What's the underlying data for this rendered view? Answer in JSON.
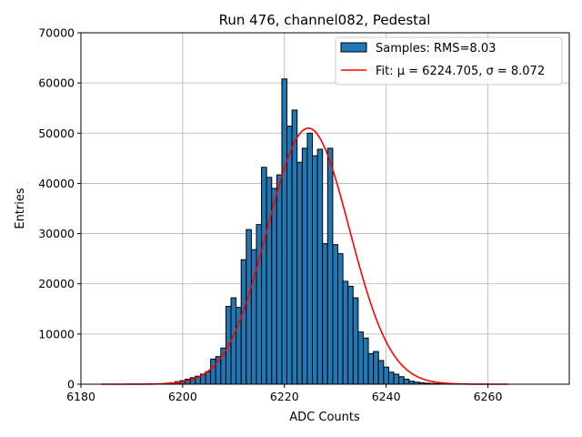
{
  "chart_data": {
    "type": "bar",
    "title": "Run 476, channel082, Pedestal",
    "xlabel": "ADC Counts",
    "ylabel": "Entries",
    "xlim": [
      6180,
      6276
    ],
    "ylim": [
      0,
      70000
    ],
    "xticks": [
      6180,
      6200,
      6220,
      6240,
      6260
    ],
    "yticks": [
      0,
      10000,
      20000,
      30000,
      40000,
      50000,
      60000,
      70000
    ],
    "grid": true,
    "legend_position": "top-right",
    "bar_color": "#1f77b4",
    "fit_color": "#ff0000",
    "bin_width": 1,
    "histogram": {
      "name": "Samples: RMS=8.03",
      "bins": [
        6196,
        6197,
        6198,
        6199,
        6200,
        6201,
        6202,
        6203,
        6204,
        6205,
        6206,
        6207,
        6208,
        6209,
        6210,
        6211,
        6212,
        6213,
        6214,
        6215,
        6216,
        6217,
        6218,
        6219,
        6220,
        6221,
        6222,
        6223,
        6224,
        6225,
        6226,
        6227,
        6228,
        6229,
        6230,
        6231,
        6232,
        6233,
        6234,
        6235,
        6236,
        6237,
        6238,
        6239,
        6240,
        6241,
        6242,
        6243,
        6244,
        6245,
        6246,
        6247,
        6248,
        6249,
        6250,
        6251,
        6252,
        6253
      ],
      "values": [
        100,
        200,
        300,
        500,
        700,
        1000,
        1300,
        1600,
        2000,
        2500,
        5000,
        5500,
        7200,
        15500,
        17200,
        15300,
        24800,
        30800,
        26800,
        31800,
        43200,
        41200,
        39000,
        41700,
        60800,
        51400,
        54600,
        44200,
        47000,
        50000,
        45500,
        46800,
        28000,
        47000,
        27800,
        26000,
        20500,
        19500,
        17200,
        10400,
        9200,
        6100,
        6500,
        4700,
        3400,
        2400,
        2000,
        1500,
        1000,
        600,
        400,
        300,
        200,
        150,
        100,
        50,
        30,
        20
      ]
    },
    "fit": {
      "name": "Fit: μ = 6224.705, σ = 8.072",
      "mu": 6224.705,
      "sigma": 8.072,
      "amplitude": 51000,
      "x_range": [
        6184,
        6264
      ]
    }
  }
}
